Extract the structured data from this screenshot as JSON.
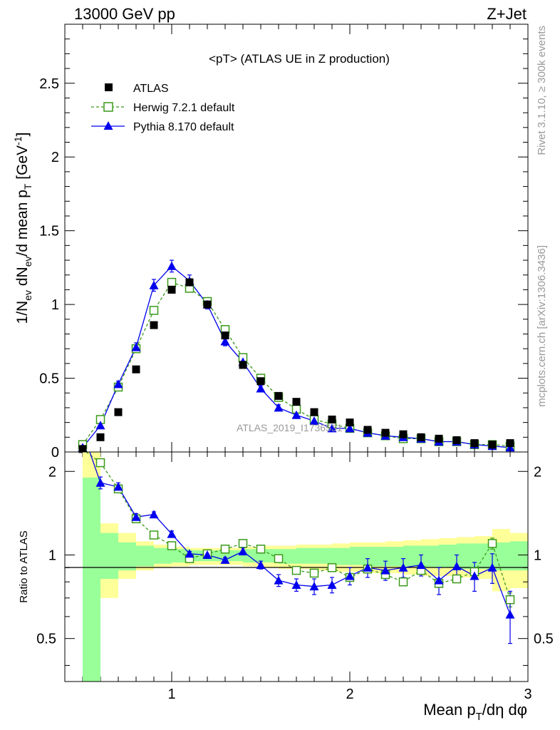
{
  "header": {
    "left": "13000 GeV pp",
    "right": "Z+Jet"
  },
  "side": {
    "rivet": "Rivet 3.1.10, ≥ 300k events",
    "mcplots": "mcplots.cern.ch [arXiv:1306.3436]"
  },
  "colors": {
    "atlas": "#000000",
    "herwig": "#3a9a1a",
    "pythia": "#0000ee",
    "band_outer": "#ffff99",
    "band_inner": "#99ff99"
  },
  "chart_data": [
    {
      "type": "scatter",
      "title": "<pT> (ATLAS UE in Z production)",
      "ylabel": "1/N_ev dN_ev/d mean p_T [GeV^-1]",
      "xlim": [
        0.4,
        3.0
      ],
      "ylim": [
        0,
        2.9
      ],
      "yticks": [
        "0",
        "0.5",
        "1",
        "1.5",
        "2",
        "2.5"
      ],
      "watermark": "ATLAS_2019_I1736531",
      "legend_position": "top-left",
      "series": [
        {
          "name": "ATLAS",
          "marker": "filled-square",
          "x": [
            0.5,
            0.6,
            0.7,
            0.8,
            0.9,
            1.0,
            1.1,
            1.2,
            1.3,
            1.4,
            1.5,
            1.6,
            1.7,
            1.8,
            1.9,
            2.0,
            2.1,
            2.2,
            2.3,
            2.4,
            2.5,
            2.6,
            2.7,
            2.8,
            2.9
          ],
          "y": [
            0.02,
            0.1,
            0.27,
            0.56,
            0.86,
            1.1,
            1.15,
            1.0,
            0.79,
            0.59,
            0.48,
            0.38,
            0.34,
            0.27,
            0.22,
            0.2,
            0.15,
            0.13,
            0.12,
            0.1,
            0.09,
            0.08,
            0.06,
            0.05,
            0.06
          ]
        },
        {
          "name": "Herwig 7.2.1 default",
          "marker": "open-square",
          "line": "dashed",
          "x": [
            0.5,
            0.6,
            0.7,
            0.8,
            0.9,
            1.0,
            1.1,
            1.2,
            1.3,
            1.4,
            1.5,
            1.6,
            1.7,
            1.8,
            1.9,
            2.0,
            2.1,
            2.2,
            2.3,
            2.4,
            2.5,
            2.6,
            2.7,
            2.8,
            2.9
          ],
          "y": [
            0.05,
            0.22,
            0.44,
            0.7,
            0.96,
            1.15,
            1.11,
            1.02,
            0.83,
            0.64,
            0.5,
            0.37,
            0.29,
            0.22,
            0.19,
            0.16,
            0.13,
            0.11,
            0.09,
            0.09,
            0.07,
            0.07,
            0.05,
            0.05,
            0.04
          ]
        },
        {
          "name": "Pythia 8.170 default",
          "marker": "filled-triangle",
          "line": "solid",
          "x": [
            0.5,
            0.6,
            0.7,
            0.8,
            0.9,
            1.0,
            1.1,
            1.2,
            1.3,
            1.4,
            1.5,
            1.6,
            1.7,
            1.8,
            1.9,
            2.0,
            2.1,
            2.2,
            2.3,
            2.4,
            2.5,
            2.6,
            2.7,
            2.8,
            2.9
          ],
          "y": [
            0.03,
            0.18,
            0.46,
            0.71,
            1.13,
            1.26,
            1.16,
            1.0,
            0.75,
            0.61,
            0.43,
            0.3,
            0.25,
            0.21,
            0.16,
            0.16,
            0.13,
            0.11,
            0.1,
            0.09,
            0.07,
            0.07,
            0.05,
            0.04,
            0.03
          ],
          "yerr": [
            0.01,
            0.02,
            0.02,
            0.03,
            0.04,
            0.04,
            0.04,
            0.03,
            0.03,
            0.02,
            0.02,
            0.02,
            0.01,
            0.01,
            0.01,
            0.01,
            0.01,
            0.01,
            0.01,
            0.01,
            0.01,
            0.01,
            0.01,
            0.01,
            0.01
          ]
        }
      ]
    },
    {
      "type": "scatter",
      "ylabel": "Ratio to ATLAS",
      "xlabel": "Mean p_T/dη dφ",
      "xlim": [
        0.4,
        3.0
      ],
      "xticks": [
        "1",
        "2",
        "3"
      ],
      "ylim": [
        0.35,
        2.35
      ],
      "yticks": [
        "0.5",
        "1",
        "2"
      ],
      "bands": {
        "x_edges": [
          0.4,
          0.5,
          0.6,
          0.7,
          0.8,
          0.9,
          1.0,
          1.1,
          1.2,
          1.3,
          1.4,
          1.5,
          1.6,
          1.7,
          1.8,
          1.9,
          2.0,
          2.1,
          2.2,
          2.3,
          2.4,
          2.5,
          2.6,
          2.7,
          2.8,
          2.9,
          3.0
        ],
        "inner_lo": [
          1.0,
          0.35,
          0.82,
          0.88,
          0.91,
          0.93,
          0.94,
          0.95,
          0.95,
          0.95,
          0.94,
          0.94,
          0.93,
          0.93,
          0.93,
          0.92,
          0.92,
          0.91,
          0.91,
          0.91,
          0.9,
          0.9,
          0.89,
          0.89,
          0.88,
          0.88
        ],
        "inner_hi": [
          1.0,
          1.9,
          1.2,
          1.11,
          1.08,
          1.06,
          1.05,
          1.04,
          1.04,
          1.04,
          1.05,
          1.05,
          1.05,
          1.06,
          1.06,
          1.06,
          1.07,
          1.07,
          1.07,
          1.08,
          1.08,
          1.09,
          1.1,
          1.1,
          1.11,
          1.12
        ],
        "outer_lo": [
          1.0,
          0.35,
          0.7,
          0.82,
          0.88,
          0.9,
          0.91,
          0.92,
          0.92,
          0.92,
          0.91,
          0.9,
          0.89,
          0.89,
          0.88,
          0.87,
          0.87,
          0.86,
          0.86,
          0.85,
          0.84,
          0.84,
          0.83,
          0.82,
          0.74,
          0.76
        ],
        "outer_hi": [
          1.0,
          2.35,
          1.3,
          1.2,
          1.12,
          1.09,
          1.07,
          1.06,
          1.06,
          1.06,
          1.07,
          1.08,
          1.08,
          1.09,
          1.09,
          1.1,
          1.11,
          1.11,
          1.12,
          1.13,
          1.14,
          1.15,
          1.16,
          1.17,
          1.24,
          1.2
        ]
      },
      "series": [
        {
          "name": "Herwig 7.2.1 default",
          "marker": "open-square",
          "line": "dashed",
          "x": [
            0.6,
            0.7,
            0.8,
            0.9,
            1.0,
            1.1,
            1.2,
            1.3,
            1.4,
            1.5,
            1.6,
            1.7,
            1.8,
            1.9,
            2.0,
            2.1,
            2.2,
            2.3,
            2.4,
            2.5,
            2.6,
            2.7,
            2.8,
            2.9
          ],
          "y": [
            2.15,
            1.73,
            1.35,
            1.18,
            1.08,
            0.97,
            1.01,
            1.05,
            1.1,
            1.05,
            0.97,
            0.88,
            0.86,
            0.9,
            0.83,
            0.89,
            0.85,
            0.8,
            0.88,
            0.79,
            0.82,
            0.87,
            1.1,
            0.69
          ],
          "yerr": [
            0.02,
            0.02,
            0.01,
            0.01,
            0.01,
            0.01,
            0.01,
            0.01,
            0.01,
            0.01,
            0.01,
            0.01,
            0.01,
            0.01,
            0.01,
            0.01,
            0.01,
            0.02,
            0.02,
            0.02,
            0.02,
            0.03,
            0.05,
            0.04
          ]
        },
        {
          "name": "Pythia 8.170 default",
          "marker": "filled-triangle",
          "line": "solid",
          "x": [
            0.6,
            0.7,
            0.8,
            0.9,
            1.0,
            1.1,
            1.2,
            1.3,
            1.4,
            1.5,
            1.6,
            1.7,
            1.8,
            1.9,
            2.0,
            2.1,
            2.2,
            2.3,
            2.4,
            2.5,
            2.6,
            2.7,
            2.8,
            2.9
          ],
          "y": [
            1.82,
            1.76,
            1.37,
            1.4,
            1.19,
            1.01,
            1.0,
            0.96,
            1.03,
            0.92,
            0.81,
            0.78,
            0.77,
            0.78,
            0.84,
            0.9,
            0.88,
            0.9,
            0.92,
            0.81,
            0.91,
            0.84,
            0.9,
            0.61
          ],
          "yerr": [
            0.09,
            0.06,
            0.04,
            0.03,
            0.03,
            0.02,
            0.02,
            0.02,
            0.03,
            0.03,
            0.04,
            0.04,
            0.05,
            0.05,
            0.06,
            0.07,
            0.07,
            0.07,
            0.08,
            0.09,
            0.09,
            0.1,
            0.11,
            0.13
          ]
        }
      ]
    }
  ]
}
